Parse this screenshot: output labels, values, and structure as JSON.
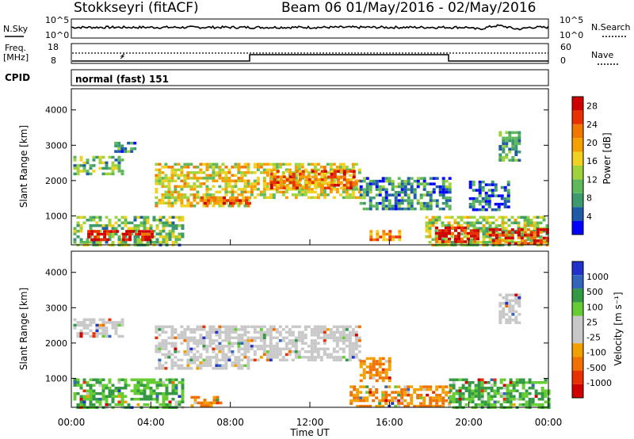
{
  "header": {
    "title": "Stokkseyri (fitACF)",
    "beam_info": "Beam 06  01/May/2016 - 02/May/2016"
  },
  "strips": {
    "nsky_label": "N.Sky",
    "nsky_ticks": [
      "10^5",
      "10^0"
    ],
    "nsearch_label": "N.Search",
    "nsearch_ticks": [
      "10^5",
      "10^0"
    ],
    "freq_label_1": "Freq.",
    "freq_label_2": "[MHz]",
    "freq_ticks": [
      "18",
      "8"
    ],
    "nave_label": "Nave",
    "nave_ticks": [
      "60",
      "0"
    ],
    "cpid_label": "CPID",
    "cpid_value": "normal (fast) 151"
  },
  "colors": {
    "power": [
      "#0000ff",
      "#1e5aa8",
      "#3c9a6e",
      "#5fb85a",
      "#a0d23c",
      "#f0d020",
      "#f5a000",
      "#f07800",
      "#e83000",
      "#d00000"
    ],
    "velocity": [
      "#2233cc",
      "#3366bb",
      "#339944",
      "#66cc33",
      "#c8c8c8",
      "#c8c8c8",
      "#f0a000",
      "#f07000",
      "#e83000",
      "#d00000"
    ]
  },
  "chart_data": [
    {
      "type": "heatmap",
      "name": "power",
      "ylabel": "Slant Range [km]",
      "yticks": [
        1000,
        2000,
        3000,
        4000
      ],
      "ylim": [
        180,
        4600
      ],
      "xlim": [
        0,
        24
      ],
      "colorbar_label": "Power [dB]",
      "colorbar_ticks": [
        "4",
        "8",
        "12",
        "16",
        "20",
        "24",
        "28"
      ],
      "colorbar_range": [
        0,
        30
      ],
      "regions": [
        {
          "t0": 0.1,
          "t1": 5.6,
          "r0": 200,
          "r1": 1000,
          "v": 10
        },
        {
          "t0": 0.8,
          "t1": 4.0,
          "r0": 300,
          "r1": 600,
          "v": 27
        },
        {
          "t0": 0.1,
          "t1": 2.5,
          "r0": 2200,
          "r1": 2700,
          "v": 10
        },
        {
          "t0": 2.0,
          "t1": 3.2,
          "r0": 2800,
          "r1": 3100,
          "v": 6
        },
        {
          "t0": 4.2,
          "t1": 8.9,
          "r0": 1300,
          "r1": 2500,
          "v": 15
        },
        {
          "t0": 6.5,
          "t1": 8.9,
          "r0": 1350,
          "r1": 1550,
          "v": 22
        },
        {
          "t0": 9.0,
          "t1": 14.5,
          "r0": 1500,
          "r1": 2500,
          "v": 14
        },
        {
          "t0": 10.0,
          "t1": 14.3,
          "r0": 1800,
          "r1": 2300,
          "v": 21
        },
        {
          "t0": 14.5,
          "t1": 19.0,
          "r0": 1200,
          "r1": 2100,
          "v": 6
        },
        {
          "t0": 15.0,
          "t1": 16.5,
          "r0": 300,
          "r1": 600,
          "v": 20
        },
        {
          "t0": 17.8,
          "t1": 24.0,
          "r0": 200,
          "r1": 1000,
          "v": 12
        },
        {
          "t0": 18.3,
          "t1": 20.5,
          "r0": 250,
          "r1": 700,
          "v": 27
        },
        {
          "t0": 21.0,
          "t1": 24.0,
          "r0": 250,
          "r1": 650,
          "v": 25
        },
        {
          "t0": 20.0,
          "t1": 22.0,
          "r0": 1200,
          "r1": 2000,
          "v": 4
        },
        {
          "t0": 21.5,
          "t1": 22.5,
          "r0": 2600,
          "r1": 3400,
          "v": 8
        }
      ]
    },
    {
      "type": "heatmap",
      "name": "velocity",
      "ylabel": "Slant Range [km]",
      "yticks": [
        1000,
        2000,
        3000,
        4000
      ],
      "ylim": [
        180,
        4600
      ],
      "xlim": [
        0,
        24
      ],
      "xticks": [
        "00:00",
        "04:00",
        "08:00",
        "12:00",
        "16:00",
        "20:00",
        "00:00"
      ],
      "xlabel": "Time UT",
      "colorbar_label": "Velocity [m s⁻¹]",
      "colorbar_ticks": [
        "1000",
        "500",
        "100",
        "25",
        "-25",
        "-100",
        "-500",
        "-1000"
      ],
      "regions": [
        {
          "t0": 0.1,
          "t1": 5.6,
          "r0": 200,
          "r1": 1000,
          "v": "green"
        },
        {
          "t0": 0.1,
          "t1": 2.5,
          "r0": 2200,
          "r1": 2700,
          "v": "grey"
        },
        {
          "t0": 4.2,
          "t1": 8.9,
          "r0": 1300,
          "r1": 2500,
          "v": "grey"
        },
        {
          "t0": 6.0,
          "t1": 7.5,
          "r0": 200,
          "r1": 500,
          "v": "orange"
        },
        {
          "t0": 9.0,
          "t1": 14.5,
          "r0": 1500,
          "r1": 2500,
          "v": "grey"
        },
        {
          "t0": 14.5,
          "t1": 16.0,
          "r0": 900,
          "r1": 1600,
          "v": "orange"
        },
        {
          "t0": 14.0,
          "t1": 19.0,
          "r0": 200,
          "r1": 800,
          "v": "orange"
        },
        {
          "t0": 19.0,
          "t1": 24.0,
          "r0": 200,
          "r1": 1000,
          "v": "green"
        },
        {
          "t0": 21.5,
          "t1": 22.5,
          "r0": 2600,
          "r1": 3400,
          "v": "grey"
        }
      ]
    }
  ]
}
